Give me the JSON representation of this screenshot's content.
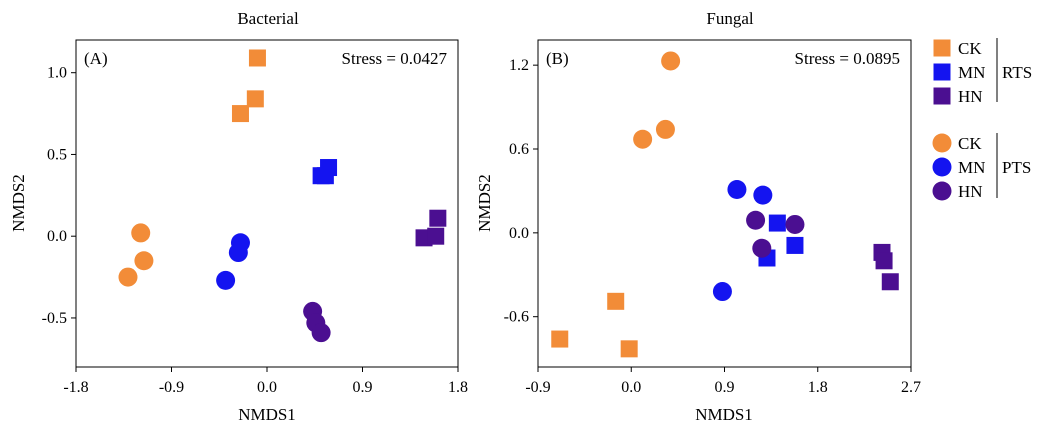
{
  "colors": {
    "CK": "#f28c38",
    "MN": "#1414f0",
    "HN": "#4b0f91"
  },
  "legend": {
    "rts_label": "RTS",
    "pts_label": "PTS",
    "rts_items": [
      {
        "label": "CK",
        "group": "CK",
        "marker": "square"
      },
      {
        "label": "MN",
        "group": "MN",
        "marker": "square"
      },
      {
        "label": "HN",
        "group": "HN",
        "marker": "square"
      }
    ],
    "pts_items": [
      {
        "label": "CK",
        "group": "CK",
        "marker": "circle"
      },
      {
        "label": "MN",
        "group": "MN",
        "marker": "circle"
      },
      {
        "label": "HN",
        "group": "HN",
        "marker": "circle"
      }
    ]
  },
  "chart_data": [
    {
      "type": "scatter",
      "title": "Bacterial",
      "panel_label": "(A)",
      "stress": "Stress = 0.0427",
      "xlabel": "NMDS1",
      "ylabel": "NMDS2",
      "xlim": [
        -1.8,
        1.8
      ],
      "ylim": [
        -0.8,
        1.2
      ],
      "xticks": [
        -1.8,
        -0.9,
        0.0,
        0.9,
        1.8
      ],
      "xtick_labels": [
        "-1.8",
        "-0.9",
        "0.0",
        "0.9",
        "1.8"
      ],
      "yticks": [
        -0.5,
        0.0,
        0.5,
        1.0
      ],
      "ytick_labels": [
        "-0.5",
        "0.0",
        "0.5",
        "1.0"
      ],
      "series": [
        {
          "name": "RTS CK",
          "group": "CK",
          "marker": "square",
          "points": [
            [
              -0.25,
              0.75
            ],
            [
              -0.11,
              0.84
            ],
            [
              -0.09,
              1.09
            ]
          ]
        },
        {
          "name": "RTS MN",
          "group": "MN",
          "marker": "square",
          "points": [
            [
              0.51,
              0.37
            ],
            [
              0.55,
              0.37
            ],
            [
              0.58,
              0.42
            ]
          ]
        },
        {
          "name": "RTS HN",
          "group": "HN",
          "marker": "square",
          "points": [
            [
              1.48,
              -0.01
            ],
            [
              1.59,
              0.0
            ],
            [
              1.61,
              0.11
            ]
          ]
        },
        {
          "name": "PTS CK",
          "group": "CK",
          "marker": "circle",
          "points": [
            [
              -1.19,
              0.02
            ],
            [
              -1.16,
              -0.15
            ],
            [
              -1.31,
              -0.25
            ]
          ]
        },
        {
          "name": "PTS MN",
          "group": "MN",
          "marker": "circle",
          "points": [
            [
              -0.25,
              -0.04
            ],
            [
              -0.27,
              -0.1
            ],
            [
              -0.39,
              -0.27
            ]
          ]
        },
        {
          "name": "PTS HN",
          "group": "HN",
          "marker": "circle",
          "points": [
            [
              0.43,
              -0.46
            ],
            [
              0.46,
              -0.53
            ],
            [
              0.51,
              -0.59
            ]
          ]
        }
      ]
    },
    {
      "type": "scatter",
      "title": "Fungal",
      "panel_label": "(B)",
      "stress": "Stress = 0.0895",
      "xlabel": "NMDS1",
      "ylabel": "NMDS2",
      "xlim": [
        -0.9,
        2.7
      ],
      "ylim": [
        -0.96,
        1.38
      ],
      "xticks": [
        -0.9,
        0.0,
        0.9,
        1.8,
        2.7
      ],
      "xtick_labels": [
        "-0.9",
        "0.0",
        "0.9",
        "1.8",
        "2.7"
      ],
      "yticks": [
        -0.6,
        0.0,
        0.6,
        1.2
      ],
      "ytick_labels": [
        "-0.6",
        "0.0",
        "0.6",
        "1.2"
      ],
      "series": [
        {
          "name": "RTS CK",
          "group": "CK",
          "marker": "square",
          "points": [
            [
              -0.15,
              -0.49
            ],
            [
              -0.69,
              -0.76
            ],
            [
              -0.02,
              -0.83
            ]
          ]
        },
        {
          "name": "RTS MN",
          "group": "MN",
          "marker": "square",
          "points": [
            [
              1.41,
              0.07
            ],
            [
              1.58,
              -0.09
            ],
            [
              1.31,
              -0.18
            ]
          ]
        },
        {
          "name": "RTS HN",
          "group": "HN",
          "marker": "square",
          "points": [
            [
              2.42,
              -0.14
            ],
            [
              2.44,
              -0.2
            ],
            [
              2.5,
              -0.35
            ]
          ]
        },
        {
          "name": "PTS CK",
          "group": "CK",
          "marker": "circle",
          "points": [
            [
              0.38,
              1.23
            ],
            [
              0.33,
              0.74
            ],
            [
              0.11,
              0.67
            ]
          ]
        },
        {
          "name": "PTS MN",
          "group": "MN",
          "marker": "circle",
          "points": [
            [
              1.02,
              0.31
            ],
            [
              1.27,
              0.27
            ],
            [
              0.88,
              -0.42
            ]
          ]
        },
        {
          "name": "PTS HN",
          "group": "HN",
          "marker": "circle",
          "points": [
            [
              1.2,
              0.09
            ],
            [
              1.58,
              0.06
            ],
            [
              1.26,
              -0.11
            ]
          ]
        }
      ]
    }
  ]
}
